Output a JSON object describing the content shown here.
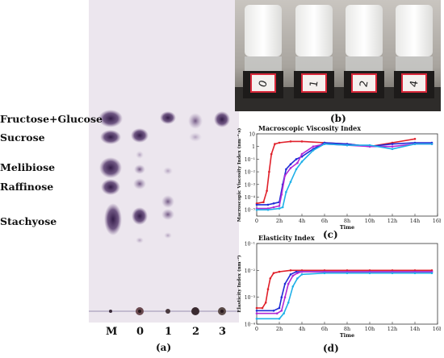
{
  "tlc": {
    "labels": [
      "Fructose+Glucose",
      "Sucrose",
      "Melibiose",
      "Raffinose",
      "Stachyose"
    ],
    "lanes": [
      "M",
      "0",
      "1",
      "2",
      "3"
    ],
    "caption": "(a)"
  },
  "photo": {
    "vial_labels": [
      "0",
      "1",
      "2",
      "4"
    ],
    "caption": "(b)"
  },
  "chart_c": {
    "title": "Macroscopic Viscosity Index",
    "ylabel": "Macroscopic Viscosity Index (nm⁻²·s)",
    "xlabel": "Time",
    "caption": "(c)"
  },
  "chart_d": {
    "title": "Elasticity Index",
    "ylabel": "Elasticity Index (nm⁻²)",
    "xlabel": "Time",
    "caption": "(d)"
  },
  "chart_data": [
    {
      "type": "line",
      "title": "Macroscopic Viscosity Index",
      "ylabel": "Macroscopic Viscosity Index (nm⁻²·s)",
      "xlabel": "Time",
      "x_ticks": [
        "0",
        "2h",
        "4h",
        "6h",
        "8h",
        "10h",
        "12h",
        "14h",
        "16h"
      ],
      "y_ticks": [
        "10⁻⁵",
        "10⁻⁴",
        "10⁻³",
        "10⁻²",
        "10⁻¹",
        "1",
        "10"
      ],
      "xlim": [
        0,
        16
      ],
      "ylim_log10": [
        -5.5,
        1
      ],
      "y_scale": "log",
      "series": [
        {
          "color": "#e0202a",
          "x": [
            0,
            0.6,
            0.9,
            1.1,
            1.3,
            1.6,
            2,
            3,
            4,
            6,
            8,
            10,
            12,
            14
          ],
          "y": [
            -4.5,
            -4.4,
            -3.5,
            -2,
            -0.6,
            0.2,
            0.3,
            0.4,
            0.4,
            0.3,
            0.2,
            0,
            0.3,
            0.6
          ]
        },
        {
          "color": "#1e2bd6",
          "x": [
            0,
            1,
            1.5,
            2,
            2.3,
            2.6,
            3,
            3.5,
            4,
            5,
            6,
            8,
            10,
            12,
            14,
            15.5
          ],
          "y": [
            -4.6,
            -4.6,
            -4.5,
            -4.4,
            -3,
            -1.8,
            -1.4,
            -1,
            -0.8,
            -0.2,
            0.3,
            0.2,
            0,
            0.2,
            0.3,
            0.3
          ]
        },
        {
          "color": "#b02ad6",
          "x": [
            0,
            1,
            1.5,
            2,
            2.2,
            2.5,
            3,
            3.6,
            4,
            5,
            6,
            8,
            10,
            12,
            14,
            15.5
          ],
          "y": [
            -4.9,
            -4.9,
            -4.8,
            -4.7,
            -3.8,
            -2.3,
            -1.7,
            -1.3,
            -0.6,
            0,
            0.2,
            0.1,
            0,
            0,
            0.2,
            0.2
          ]
        },
        {
          "color": "#1fb0e8",
          "x": [
            0,
            1,
            2,
            2.3,
            2.6,
            3,
            3.5,
            4,
            5,
            6,
            8,
            10,
            12,
            14,
            15.5
          ],
          "y": [
            -5,
            -5,
            -4.9,
            -4.8,
            -3.6,
            -2.8,
            -1.8,
            -1.2,
            -0.3,
            0.2,
            0.1,
            0.1,
            -0.2,
            0.2,
            0.2
          ]
        }
      ]
    },
    {
      "type": "line",
      "title": "Elasticity Index",
      "ylabel": "Elasticity Index (nm⁻²)",
      "xlabel": "Time",
      "x_ticks": [
        "0",
        "2h",
        "4h",
        "6h",
        "8h",
        "10h",
        "12h",
        "14h",
        "16h"
      ],
      "y_ticks": [
        "10⁻⁴",
        "10⁻³",
        "10⁻²",
        "10⁻¹"
      ],
      "xlim": [
        0,
        16
      ],
      "ylim_log10": [
        -4,
        -1
      ],
      "y_scale": "log",
      "series": [
        {
          "color": "#e0202a",
          "x": [
            0,
            0.5,
            0.8,
            1,
            1.2,
            1.5,
            2,
            3,
            4,
            6,
            8,
            10,
            12,
            14,
            15.5
          ],
          "y": [
            -3.4,
            -3.4,
            -3.2,
            -2.7,
            -2.3,
            -2.1,
            -2.05,
            -2,
            -2,
            -2,
            -2,
            -2,
            -2,
            -2,
            -2
          ]
        },
        {
          "color": "#1e2bd6",
          "x": [
            0,
            1.5,
            2,
            2.2,
            2.5,
            3,
            3.5,
            4,
            6,
            8,
            10,
            12,
            14,
            15.5
          ],
          "y": [
            -3.5,
            -3.5,
            -3.4,
            -3,
            -2.5,
            -2.15,
            -2.05,
            -2.05,
            -2.05,
            -2.05,
            -2.05,
            -2.05,
            -2.05,
            -2.05
          ]
        },
        {
          "color": "#b02ad6",
          "x": [
            0,
            1.8,
            2.2,
            2.5,
            2.8,
            3.2,
            3.6,
            4,
            6,
            8,
            10,
            12,
            14,
            15.5
          ],
          "y": [
            -3.6,
            -3.6,
            -3.5,
            -3,
            -2.5,
            -2.2,
            -2.1,
            -2.05,
            -2.05,
            -2.05,
            -2.05,
            -2.05,
            -2.05,
            -2.05
          ]
        },
        {
          "color": "#1fb0e8",
          "x": [
            0,
            2,
            2.4,
            2.8,
            3.2,
            3.6,
            4,
            6,
            8,
            10,
            12,
            14,
            15.5
          ],
          "y": [
            -3.8,
            -3.8,
            -3.6,
            -3.2,
            -2.6,
            -2.3,
            -2.15,
            -2.1,
            -2.1,
            -2.1,
            -2.1,
            -2.1,
            -2.1
          ]
        }
      ]
    }
  ]
}
